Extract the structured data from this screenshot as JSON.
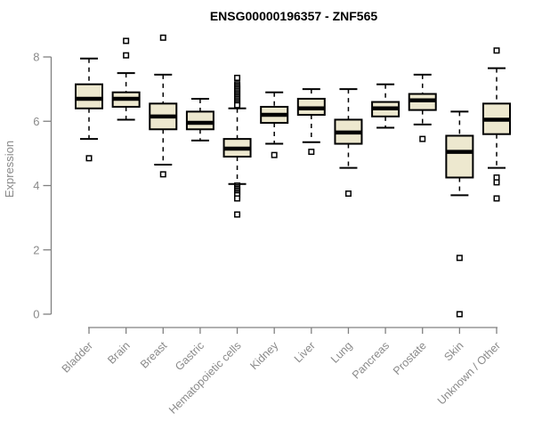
{
  "chart_data": {
    "type": "boxplot",
    "title": "ENSG00000196357 - ZNF565",
    "ylabel": "Expression",
    "ylim": [
      0,
      8
    ],
    "yticks": [
      0,
      2,
      4,
      6,
      8
    ],
    "grid": false,
    "categories": [
      "Bladder",
      "Brain",
      "Breast",
      "Gastric",
      "Hematopoietic cells",
      "Kidney",
      "Liver",
      "Lung",
      "Pancreas",
      "Prostate",
      "Skin",
      "Unknown / Other"
    ],
    "boxes": [
      {
        "category": "Bladder",
        "whisker_low": 5.45,
        "q1": 6.4,
        "median": 6.7,
        "q3": 7.15,
        "whisker_high": 7.95,
        "outliers": [
          4.85
        ]
      },
      {
        "category": "Brain",
        "whisker_low": 6.05,
        "q1": 6.45,
        "median": 6.7,
        "q3": 6.9,
        "whisker_high": 7.5,
        "outliers": [
          8.05,
          8.5
        ]
      },
      {
        "category": "Breast",
        "whisker_low": 4.65,
        "q1": 5.75,
        "median": 6.15,
        "q3": 6.55,
        "whisker_high": 7.45,
        "outliers": [
          8.6,
          4.35
        ]
      },
      {
        "category": "Gastric",
        "whisker_low": 5.4,
        "q1": 5.75,
        "median": 5.95,
        "q3": 6.3,
        "whisker_high": 6.7,
        "outliers": []
      },
      {
        "category": "Hematopoietic cells",
        "whisker_low": 4.05,
        "q1": 4.9,
        "median": 5.15,
        "q3": 5.45,
        "whisker_high": 6.4,
        "outliers": [
          7.35,
          7.15,
          7.1,
          7.05,
          7.0,
          6.95,
          6.9,
          6.85,
          6.8,
          6.75,
          6.7,
          6.65,
          6.6,
          6.55,
          6.5,
          4.0,
          3.95,
          3.9,
          3.85,
          3.8,
          3.75,
          3.7,
          3.6,
          3.1
        ]
      },
      {
        "category": "Kidney",
        "whisker_low": 5.3,
        "q1": 5.95,
        "median": 6.2,
        "q3": 6.45,
        "whisker_high": 6.9,
        "outliers": [
          4.95
        ]
      },
      {
        "category": "Liver",
        "whisker_low": 5.35,
        "q1": 6.2,
        "median": 6.4,
        "q3": 6.7,
        "whisker_high": 7.0,
        "outliers": [
          5.05
        ]
      },
      {
        "category": "Lung",
        "whisker_low": 4.55,
        "q1": 5.3,
        "median": 5.65,
        "q3": 6.05,
        "whisker_high": 7.0,
        "outliers": [
          3.75
        ]
      },
      {
        "category": "Pancreas",
        "whisker_low": 5.8,
        "q1": 6.15,
        "median": 6.4,
        "q3": 6.6,
        "whisker_high": 7.15,
        "outliers": []
      },
      {
        "category": "Prostate",
        "whisker_low": 5.9,
        "q1": 6.35,
        "median": 6.65,
        "q3": 6.85,
        "whisker_high": 7.45,
        "outliers": [
          5.45
        ]
      },
      {
        "category": "Skin",
        "whisker_low": 3.7,
        "q1": 4.25,
        "median": 5.05,
        "q3": 5.55,
        "whisker_high": 6.3,
        "outliers": [
          1.75,
          0.0
        ]
      },
      {
        "category": "Unknown / Other",
        "whisker_low": 4.55,
        "q1": 5.6,
        "median": 6.05,
        "q3": 6.55,
        "whisker_high": 7.65,
        "outliers": [
          8.2,
          4.25,
          4.1,
          3.6
        ]
      }
    ],
    "colors": {
      "box_fill": "#ede8cf",
      "box_border": "#000000",
      "median": "#000000",
      "whisker": "#000000",
      "outlier_fill": "#ffffff",
      "axis": "#818181",
      "label": "#8a8a8a",
      "title": "#000000",
      "background": "#ffffff"
    }
  }
}
